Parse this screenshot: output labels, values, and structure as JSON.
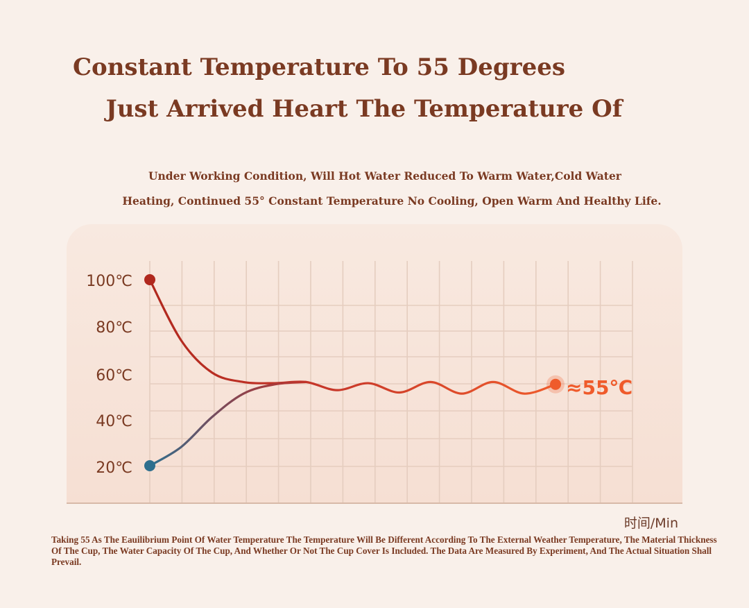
{
  "header": {
    "title_line1": "Constant Temperature To 55 Degrees",
    "title_line2": "Just Arrived Heart The Temperature Of",
    "subtitle_line1": "Under Working Condition, Will Hot Water Reduced To Warm Water,Cold Water",
    "subtitle_line2": "Heating, Continued 55°   Constant Temperature No Cooling, Open Warm And Healthy Life."
  },
  "footnote": "Taking 55 As The Eauilibrium Point Of Water Temperature The Temperature Will Be Different According To The External Weather Temperature, The Material Thickness Of The Cup, The Water Capacity Of The Cup, And Whether Or Not The Cup Cover Is Included. The Data Are Measured By Experiment, And The Actual Situation Shall Prevail.",
  "colors": {
    "hot": "#b0281e",
    "cold": "#2e6f8e",
    "target": "#ef5b2b",
    "grid": "#e5cdbf",
    "text": "#7a3a22"
  },
  "chart_data": {
    "type": "line",
    "xlabel": "时间/Min",
    "ylabel": "",
    "ylim": [
      10,
      110
    ],
    "yticks": [
      "100℃",
      "80℃",
      "60℃",
      "40℃",
      "20℃"
    ],
    "ytick_values": [
      100,
      80,
      60,
      40,
      20
    ],
    "grid": true,
    "end_label": "≈55℃",
    "series": [
      {
        "role": "hot",
        "x": [
          0,
          1,
          2,
          3,
          4,
          5,
          6,
          7,
          8,
          9,
          10,
          11,
          12,
          13
        ],
        "values": [
          100,
          74,
          60,
          56,
          55.5,
          56,
          52.5,
          55.5,
          51.5,
          56,
          51,
          56,
          51,
          55
        ]
      },
      {
        "role": "cold",
        "x": [
          0,
          1,
          2,
          3,
          4,
          5
        ],
        "values": [
          20,
          28,
          41,
          51,
          55,
          56
        ]
      }
    ]
  }
}
